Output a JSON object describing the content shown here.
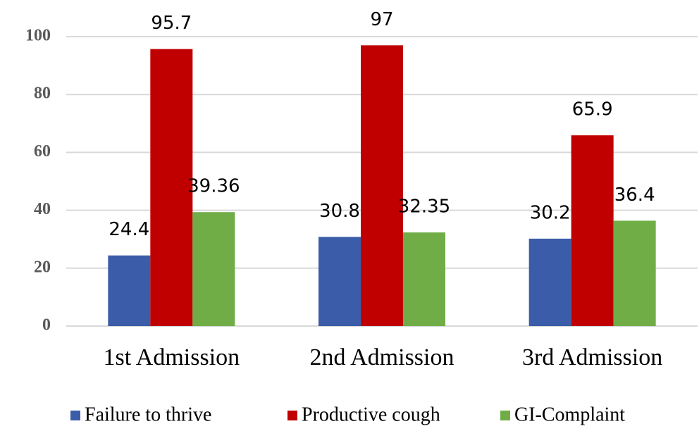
{
  "chart_data": {
    "type": "bar",
    "categories": [
      "1st Admission",
      "2nd Admission",
      "3rd Admission"
    ],
    "series": [
      {
        "name": "Failure to thrive",
        "color": "#3b5ca8",
        "values": [
          24.4,
          30.8,
          30.2
        ]
      },
      {
        "name": "Productive cough",
        "color": "#c00000",
        "values": [
          95.7,
          97,
          65.9
        ]
      },
      {
        "name": "GI-Complaint",
        "color": "#70ad47",
        "values": [
          39.36,
          32.35,
          36.4
        ]
      }
    ],
    "ylim": [
      0,
      100
    ],
    "yticks": [
      0,
      20,
      40,
      60,
      80,
      100
    ],
    "grid": true,
    "legend": "bottom"
  }
}
